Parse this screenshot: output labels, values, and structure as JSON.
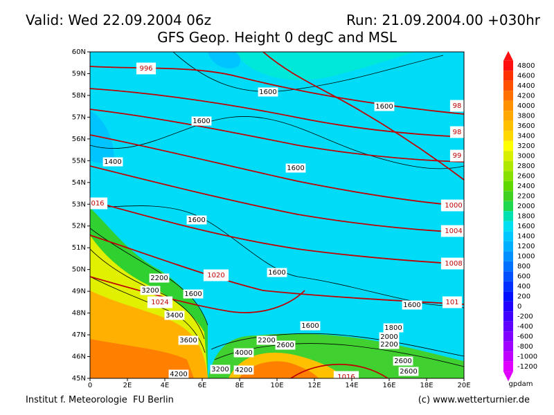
{
  "header": {
    "valid": "Valid: Wed 22.09.2004 06z",
    "run": "Run: 21.09.2004.00 +030hr",
    "title": "GFS Geop. Height 0 degC and MSL"
  },
  "map": {
    "lat_labels": [
      "60N",
      "59N",
      "58N",
      "57N",
      "56N",
      "55N",
      "54N",
      "53N",
      "52N",
      "51N",
      "50N",
      "49N",
      "48N",
      "47N",
      "46N",
      "45N"
    ],
    "lon_labels": [
      "0",
      "2E",
      "4E",
      "6E",
      "8E",
      "10E",
      "12E",
      "14E",
      "16E",
      "18E",
      "20E"
    ],
    "pressure_labels": [
      "996",
      "98",
      "98",
      "99",
      "1000",
      "1004",
      "1008",
      "101",
      "016",
      "1020",
      "1024",
      "1016"
    ],
    "height_labels": [
      "1600",
      "1600",
      "1600",
      "1400",
      "1600",
      "1600",
      "1600",
      "1600",
      "1600",
      "1800",
      "2000",
      "2200",
      "2200",
      "3200",
      "1600",
      "3400",
      "3600",
      "2200",
      "2600",
      "4000",
      "2600",
      "2600",
      "4200",
      "3200",
      "4200"
    ]
  },
  "colorbar": {
    "labels": [
      "4800",
      "4600",
      "4400",
      "4200",
      "4000",
      "3800",
      "3600",
      "3400",
      "3200",
      "3000",
      "2800",
      "2600",
      "2400",
      "2200",
      "2000",
      "1800",
      "1600",
      "1400",
      "1200",
      "1000",
      "800",
      "600",
      "400",
      "200",
      "0",
      "-200",
      "-400",
      "-600",
      "-800",
      "-1000",
      "-1200"
    ],
    "colors": [
      "#ff1010",
      "#ff3000",
      "#ff5000",
      "#ff7000",
      "#ff9000",
      "#ffa800",
      "#ffc000",
      "#ffd800",
      "#ffff00",
      "#d8f000",
      "#b0e800",
      "#88e000",
      "#60d800",
      "#40d020",
      "#20d850",
      "#00e0b0",
      "#00e0f0",
      "#00c8ff",
      "#00b0ff",
      "#0090ff",
      "#0070ff",
      "#0050ff",
      "#0030ff",
      "#0010ff",
      "#2000ff",
      "#4000ff",
      "#6000ff",
      "#8000ff",
      "#a000ff",
      "#c000ff",
      "#e000ff"
    ],
    "unit": "gpdam"
  },
  "footer": {
    "left": "Institut f. Meteorologie  FU Berlin",
    "right": "(c) www.wetterturnier.de"
  }
}
